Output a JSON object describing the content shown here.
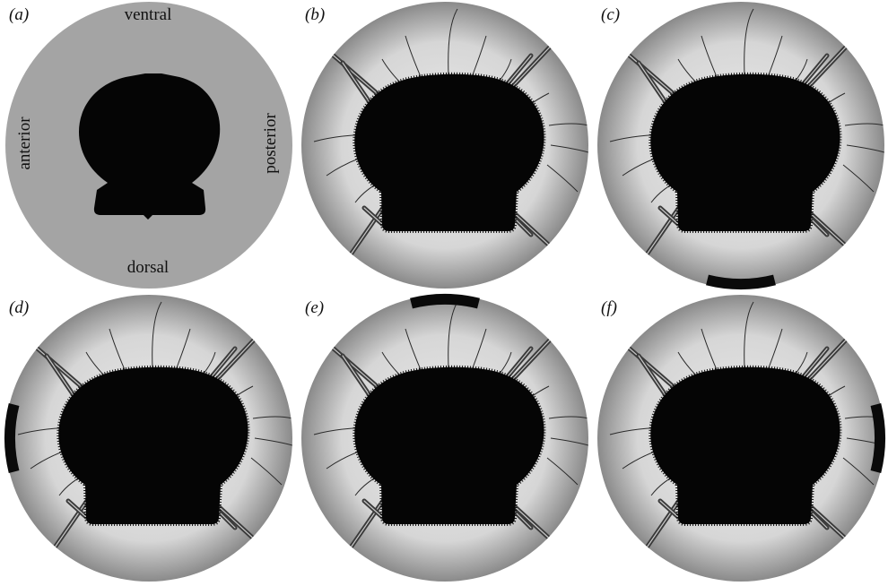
{
  "figure": {
    "panels": [
      {
        "id": "a",
        "label": "(a)",
        "type": "schematic"
      },
      {
        "id": "b",
        "label": "(b)",
        "type": "photo",
        "marker": "none"
      },
      {
        "id": "c",
        "label": "(c)",
        "type": "photo",
        "marker": "bottom"
      },
      {
        "id": "d",
        "label": "(d)",
        "type": "photo",
        "marker": "left"
      },
      {
        "id": "e",
        "label": "(e)",
        "type": "photo",
        "marker": "top"
      },
      {
        "id": "f",
        "label": "(f)",
        "type": "photo",
        "marker": "right"
      }
    ],
    "orientation_labels": {
      "ventral": "ventral",
      "dorsal": "dorsal",
      "anterior": "anterior",
      "posterior": "posterior"
    },
    "colors": {
      "schematic_disc": "#a4a4a4",
      "silhouette": "#050505",
      "photo_center": "#ececec",
      "photo_edge": "#8a8a8a",
      "marker": "#0a0a0a"
    }
  }
}
